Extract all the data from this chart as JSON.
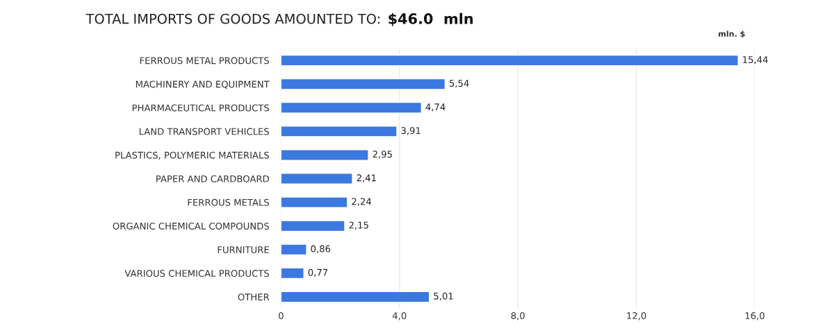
{
  "chart_data": {
    "type": "bar",
    "orientation": "horizontal",
    "title": "TOTAL IMPORTS OF GOODS AMOUNTED TO:",
    "subtitle": "$46.0  mln",
    "xlabel": "mln. $",
    "categories": [
      "FERROUS METAL PRODUCTS",
      "MACHINERY AND EQUIPMENT",
      "PHARMACEUTICAL PRODUCTS",
      "LAND TRANSPORT VEHICLES",
      "PLASTICS, POLYMERIC MATERIALS",
      "PAPER AND CARDBOARD",
      "FERROUS METALS",
      "ORGANIC CHEMICAL COMPOUNDS",
      "FURNITURE",
      "VARIOUS CHEMICAL PRODUCTS",
      "OTHER"
    ],
    "values": [
      15.44,
      5.54,
      4.74,
      3.91,
      2.95,
      2.41,
      2.24,
      2.15,
      0.86,
      0.77,
      5.01
    ],
    "value_labels": [
      "15,44",
      "5,54",
      "4,74",
      "3,91",
      "2,95",
      "2,41",
      "2,24",
      "2,15",
      "0,86",
      "0,77",
      "5,01"
    ],
    "color": "#3b78e0",
    "xlim": [
      0,
      16
    ],
    "xticks": [
      0,
      {
        "value": 4,
        "label": "4,0"
      },
      {
        "value": 8,
        "label": "8,0"
      },
      {
        "value": 12,
        "label": "12,0"
      },
      {
        "value": 16,
        "label": "16,0"
      }
    ],
    "grid": "x"
  }
}
